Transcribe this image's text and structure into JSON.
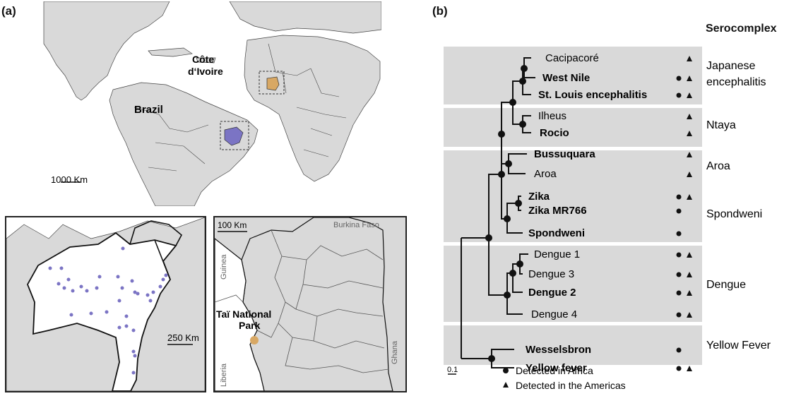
{
  "panel_a": {
    "label": "(a)",
    "world_map": {
      "brazil_label": "Brazil",
      "cote_label_line1": "Côte",
      "cote_label_line2": "d‘Ivoire",
      "scale": "1000 Km"
    },
    "brazil_inset": {
      "scale": "250 Km"
    },
    "ivoire_inset": {
      "scale": "100 Km",
      "burkina": "Burkina Faso",
      "guinea": "Guinea",
      "liberia": "Liberia",
      "ghana": "Ghana",
      "park_line1": "Taï National",
      "park_line2": "Park"
    },
    "colors": {
      "brazil_site": "#7b74c4",
      "ivoire_site": "#d8a864",
      "land": "#d9d9d9"
    }
  },
  "panel_b": {
    "label": "(b)",
    "header": "Serocomplex",
    "scale": "0.1",
    "taxa": [
      {
        "name": "Cacipacoré",
        "bold": false,
        "africa": false,
        "americas": true
      },
      {
        "name": "West Nile",
        "bold": true,
        "africa": true,
        "americas": true
      },
      {
        "name": "St. Louis encephalitis",
        "bold": true,
        "africa": true,
        "americas": true
      },
      {
        "name": "Ilheus",
        "bold": false,
        "africa": false,
        "americas": true
      },
      {
        "name": "Rocio",
        "bold": true,
        "africa": false,
        "americas": true
      },
      {
        "name": "Bussuquara",
        "bold": true,
        "africa": false,
        "americas": true
      },
      {
        "name": "Aroa",
        "bold": false,
        "africa": false,
        "americas": true
      },
      {
        "name": "Zika",
        "bold": true,
        "africa": true,
        "americas": true
      },
      {
        "name": "Zika MR766",
        "bold": true,
        "africa": true,
        "americas": false
      },
      {
        "name": "Spondweni",
        "bold": true,
        "africa": true,
        "americas": false
      },
      {
        "name": "Dengue 1",
        "bold": false,
        "africa": true,
        "americas": true
      },
      {
        "name": "Dengue 3",
        "bold": false,
        "africa": true,
        "americas": true
      },
      {
        "name": "Dengue 2",
        "bold": true,
        "africa": true,
        "americas": true
      },
      {
        "name": "Dengue 4",
        "bold": false,
        "africa": true,
        "americas": true
      },
      {
        "name": "Wesselsbron",
        "bold": true,
        "africa": true,
        "americas": false
      },
      {
        "name": "Yellow fever",
        "bold": true,
        "africa": true,
        "americas": true
      }
    ],
    "groups": [
      {
        "line1": "Japanese",
        "line2": "encephalitis"
      },
      {
        "line1": "Ntaya",
        "line2": ""
      },
      {
        "line1": "Aroa",
        "line2": ""
      },
      {
        "line1": "Spondweni",
        "line2": ""
      },
      {
        "line1": "Dengue",
        "line2": ""
      },
      {
        "line1": "Yellow Fever",
        "line2": ""
      }
    ],
    "legend": {
      "africa": "Detected in Africa",
      "americas": "Detected in the Americas"
    }
  }
}
